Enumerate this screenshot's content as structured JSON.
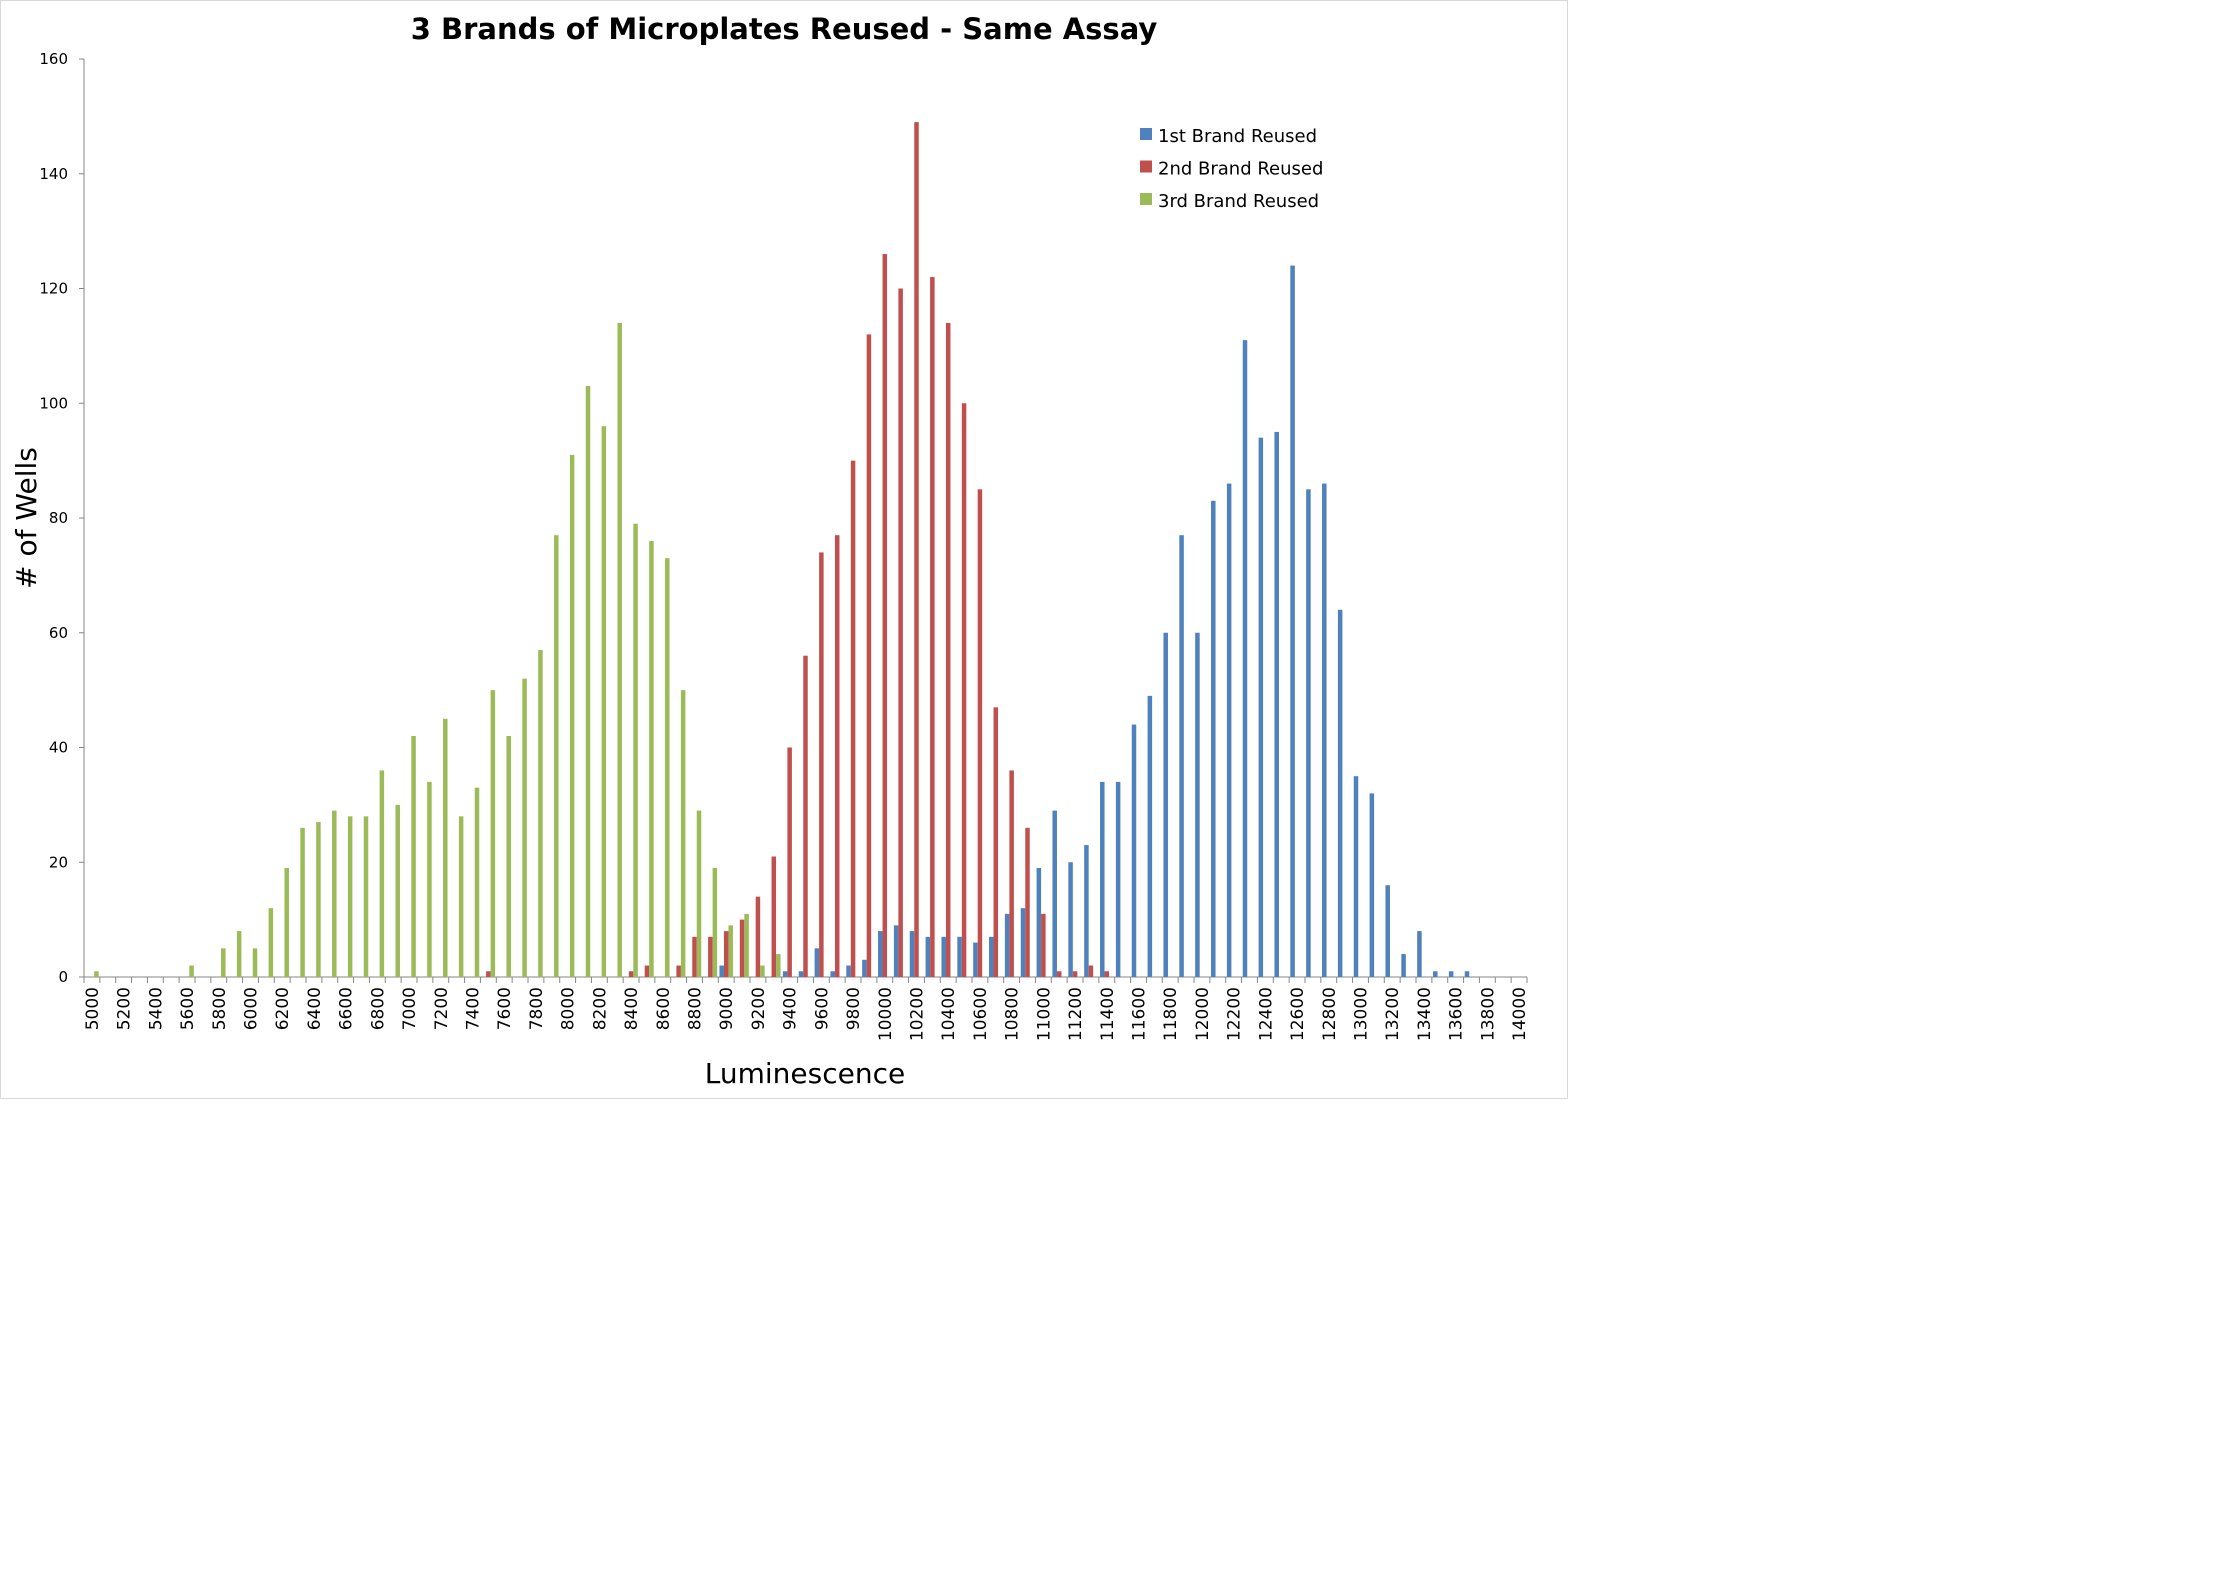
{
  "chart_data": {
    "type": "bar",
    "title": "3 Brands of  Microplates Reused - Same Assay",
    "xlabel": "Luminescence",
    "ylabel": "# of Wells",
    "ylim": [
      0,
      160
    ],
    "yticks": [
      "0",
      "20",
      "40",
      "60",
      "80",
      "100",
      "120",
      "140",
      "160"
    ],
    "legend_position": "top-right",
    "grid": false,
    "categories": [
      "5000",
      "5100",
      "5200",
      "5300",
      "5400",
      "5500",
      "5600",
      "5700",
      "5800",
      "5900",
      "6000",
      "6100",
      "6200",
      "6300",
      "6400",
      "6500",
      "6600",
      "6700",
      "6800",
      "6900",
      "7000",
      "7100",
      "7200",
      "7300",
      "7400",
      "7500",
      "7600",
      "7700",
      "7800",
      "7900",
      "8000",
      "8100",
      "8200",
      "8300",
      "8400",
      "8500",
      "8600",
      "8700",
      "8800",
      "8900",
      "9000",
      "9100",
      "9200",
      "9300",
      "9400",
      "9500",
      "9600",
      "9700",
      "9800",
      "9900",
      "10000",
      "10100",
      "10200",
      "10300",
      "10400",
      "10500",
      "10600",
      "10700",
      "10800",
      "10900",
      "11000",
      "11100",
      "11200",
      "11300",
      "11400",
      "11500",
      "11600",
      "11700",
      "11800",
      "11900",
      "12000",
      "12100",
      "12200",
      "12300",
      "12400",
      "12500",
      "12600",
      "12700",
      "12800",
      "12900",
      "13000",
      "13100",
      "13200",
      "13300",
      "13400",
      "13500",
      "13600",
      "13700",
      "13800",
      "13900",
      "14000"
    ],
    "tick_labels": [
      "5000",
      "",
      "5200",
      "",
      "5400",
      "",
      "5600",
      "",
      "5800",
      "",
      "6000",
      "",
      "6200",
      "",
      "6400",
      "",
      "6600",
      "",
      "6800",
      "",
      "7000",
      "",
      "7200",
      "",
      "7400",
      "",
      "7600",
      "",
      "7800",
      "",
      "8000",
      "",
      "8200",
      "",
      "8400",
      "",
      "8600",
      "",
      "8800",
      "",
      "9000",
      "",
      "9200",
      "",
      "9400",
      "",
      "9600",
      "",
      "9800",
      "",
      "10000",
      "",
      "10200",
      "",
      "10400",
      "",
      "10600",
      "",
      "10800",
      "",
      "11000",
      "",
      "11200",
      "",
      "11400",
      "",
      "11600",
      "",
      "11800",
      "",
      "12000",
      "",
      "12200",
      "",
      "12400",
      "",
      "12600",
      "",
      "12800",
      "",
      "13000",
      "",
      "13200",
      "",
      "13400",
      "",
      "13600",
      "",
      "13800",
      "",
      "14000"
    ],
    "series": [
      {
        "name": "1st Brand Reused",
        "color": "#4f81bd",
        "values": [
          0,
          0,
          0,
          0,
          0,
          0,
          0,
          0,
          0,
          0,
          0,
          0,
          0,
          0,
          0,
          0,
          0,
          0,
          0,
          0,
          0,
          0,
          0,
          0,
          0,
          0,
          0,
          0,
          0,
          0,
          0,
          0,
          0,
          0,
          0,
          0,
          0,
          0,
          0,
          0,
          2,
          0,
          0,
          0,
          1,
          1,
          5,
          1,
          2,
          3,
          8,
          9,
          8,
          7,
          7,
          7,
          6,
          7,
          11,
          12,
          19,
          29,
          20,
          23,
          34,
          34,
          44,
          49,
          60,
          77,
          60,
          83,
          86,
          111,
          94,
          95,
          124,
          85,
          86,
          64,
          35,
          32,
          16,
          4,
          8,
          1,
          1,
          1,
          0,
          0,
          0
        ]
      },
      {
        "name": "2nd Brand Reused",
        "color": "#c0504d",
        "values": [
          0,
          0,
          0,
          0,
          0,
          0,
          0,
          0,
          0,
          0,
          0,
          0,
          0,
          0,
          0,
          0,
          0,
          0,
          0,
          0,
          0,
          0,
          0,
          0,
          0,
          1,
          0,
          0,
          0,
          0,
          0,
          0,
          0,
          0,
          1,
          2,
          0,
          2,
          7,
          7,
          8,
          10,
          14,
          21,
          40,
          56,
          74,
          77,
          90,
          112,
          126,
          120,
          149,
          122,
          114,
          100,
          85,
          47,
          36,
          26,
          11,
          1,
          1,
          2,
          1,
          0,
          0,
          0,
          0,
          0,
          0,
          0,
          0,
          0,
          0,
          0,
          0,
          0,
          0,
          0,
          0,
          0,
          0,
          0,
          0,
          0,
          0,
          0,
          0,
          0,
          0
        ]
      },
      {
        "name": "3rd Brand Reused",
        "color": "#9bbb59",
        "values": [
          1,
          0,
          0,
          0,
          0,
          0,
          2,
          0,
          5,
          8,
          5,
          12,
          19,
          26,
          27,
          29,
          28,
          28,
          36,
          30,
          42,
          34,
          45,
          28,
          33,
          50,
          42,
          52,
          57,
          77,
          91,
          103,
          96,
          114,
          79,
          76,
          73,
          50,
          29,
          19,
          9,
          11,
          2,
          4,
          0,
          0,
          0,
          0,
          0,
          0,
          0,
          0,
          0,
          0,
          0,
          0,
          0,
          0,
          0,
          0,
          0,
          0,
          0,
          0,
          0,
          0,
          0,
          0,
          0,
          0,
          0,
          0,
          0,
          0,
          0,
          0,
          0,
          0,
          0,
          0,
          0,
          0,
          0,
          0,
          0,
          0,
          0,
          0,
          0,
          0,
          0
        ]
      }
    ]
  }
}
